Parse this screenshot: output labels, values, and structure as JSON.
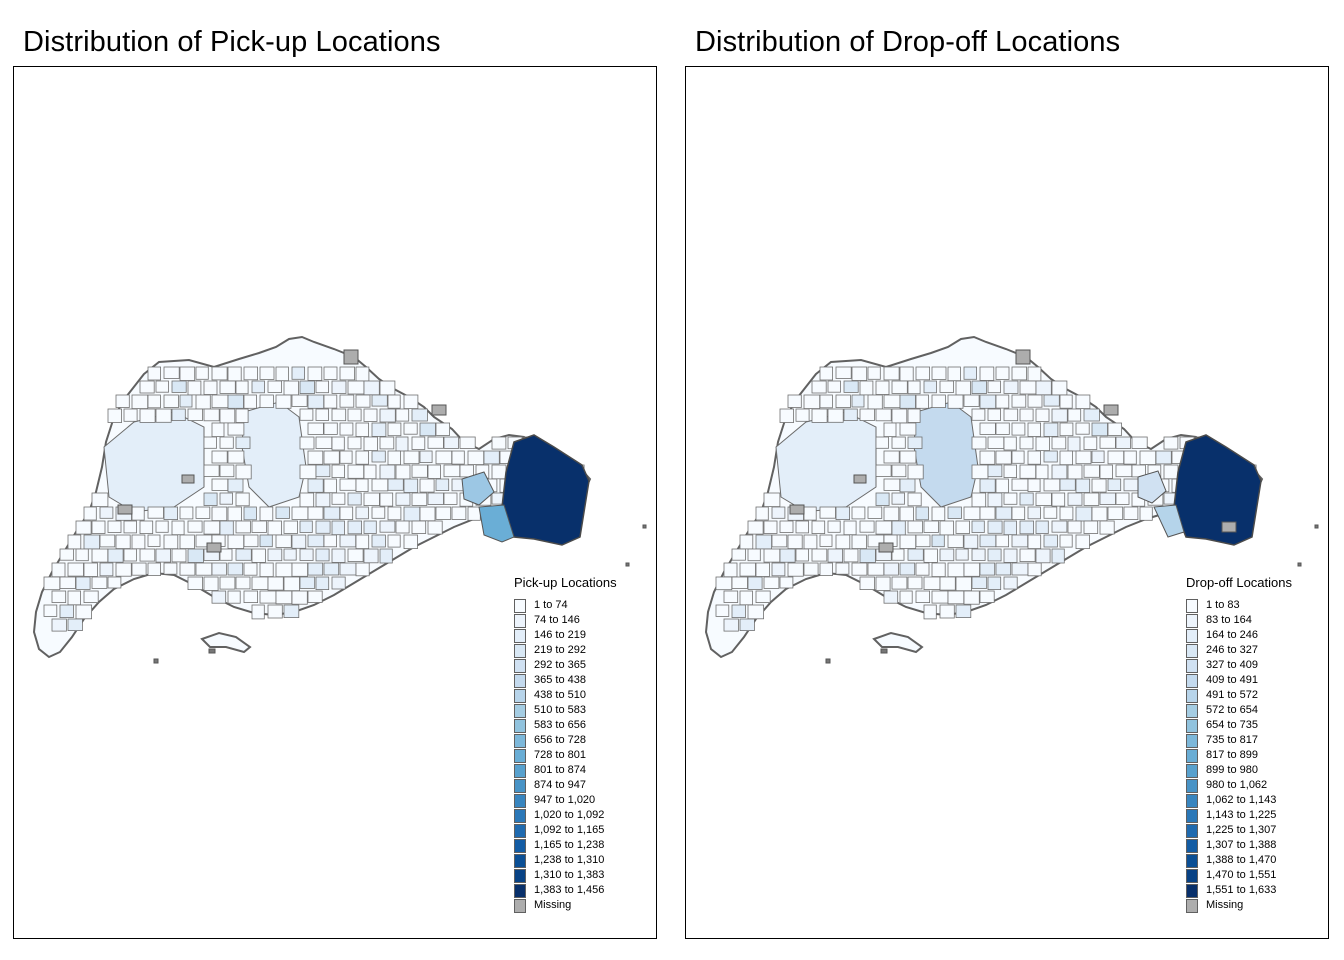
{
  "maps": [
    {
      "title": "Distribution of Pick-up Locations",
      "legend_title": "Pick-up Locations",
      "classes": [
        {
          "label": "1 to 74",
          "color": "#F7FBFF"
        },
        {
          "label": "74 to 146",
          "color": "#EDF4FC"
        },
        {
          "label": "146 to 219",
          "color": "#E3EEF9"
        },
        {
          "label": "219 to 292",
          "color": "#D9E8F5"
        },
        {
          "label": "292 to 365",
          "color": "#D0E1F2"
        },
        {
          "label": "365 to 438",
          "color": "#C4DAEE"
        },
        {
          "label": "438 to 510",
          "color": "#B7D4EA"
        },
        {
          "label": "510 to 583",
          "color": "#A5CDE3"
        },
        {
          "label": "583 to 656",
          "color": "#91C3DE"
        },
        {
          "label": "656 to 728",
          "color": "#7DB8DA"
        },
        {
          "label": "728 to 801",
          "color": "#69ADD5"
        },
        {
          "label": "801 to 874",
          "color": "#58A1CE"
        },
        {
          "label": "874 to 947",
          "color": "#4893C6"
        },
        {
          "label": "947 to 1,020",
          "color": "#3885BF"
        },
        {
          "label": "1,020 to 1,092",
          "color": "#2B78B8"
        },
        {
          "label": "1,092 to 1,165",
          "color": "#1F6AAF"
        },
        {
          "label": "1,165 to 1,238",
          "color": "#135CA4"
        },
        {
          "label": "1,238 to 1,310",
          "color": "#0B4F95"
        },
        {
          "label": "1,310 to 1,383",
          "color": "#084285"
        },
        {
          "label": "1,383 to 1,456",
          "color": "#08306B"
        },
        {
          "label": "Missing",
          "color": "#ADADAD"
        }
      ],
      "highlights": {
        "dark": "#08306B",
        "mid": "#6AAED6",
        "mid2": "#9CC7E4"
      }
    },
    {
      "title": "Distribution of Drop-off Locations",
      "legend_title": "Drop-off Locations",
      "classes": [
        {
          "label": "1 to 83",
          "color": "#F7FBFF"
        },
        {
          "label": "83 to 164",
          "color": "#EDF4FC"
        },
        {
          "label": "164 to 246",
          "color": "#E3EEF9"
        },
        {
          "label": "246 to 327",
          "color": "#D9E8F5"
        },
        {
          "label": "327 to 409",
          "color": "#D0E1F2"
        },
        {
          "label": "409 to 491",
          "color": "#C4DAEE"
        },
        {
          "label": "491 to 572",
          "color": "#B7D4EA"
        },
        {
          "label": "572 to 654",
          "color": "#A5CDE3"
        },
        {
          "label": "654 to 735",
          "color": "#91C3DE"
        },
        {
          "label": "735 to 817",
          "color": "#7DB8DA"
        },
        {
          "label": "817 to 899",
          "color": "#69ADD5"
        },
        {
          "label": "899 to 980",
          "color": "#58A1CE"
        },
        {
          "label": "980 to 1,062",
          "color": "#4893C6"
        },
        {
          "label": "1,062 to 1,143",
          "color": "#3885BF"
        },
        {
          "label": "1,143 to 1,225",
          "color": "#2B78B8"
        },
        {
          "label": "1,225 to 1,307",
          "color": "#1F6AAF"
        },
        {
          "label": "1,307 to 1,388",
          "color": "#135CA4"
        },
        {
          "label": "1,388 to 1,470",
          "color": "#0B4F95"
        },
        {
          "label": "1,470 to 1,551",
          "color": "#084285"
        },
        {
          "label": "1,551 to 1,633",
          "color": "#08306B"
        },
        {
          "label": "Missing",
          "color": "#ADADAD"
        }
      ],
      "highlights": {
        "dark": "#08306B",
        "mid": "#B5D4EA",
        "mid2": "#D0E1F2"
      }
    }
  ]
}
